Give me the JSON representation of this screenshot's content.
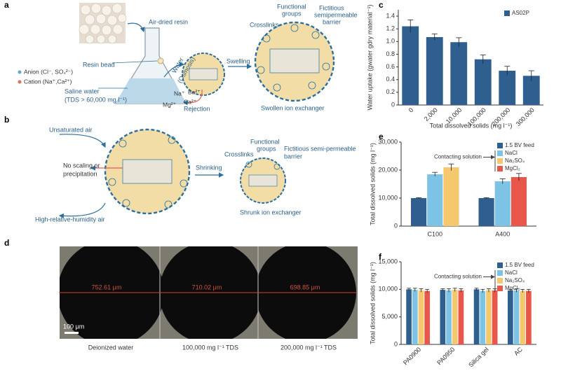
{
  "panel_labels": [
    "a",
    "b",
    "c",
    "d",
    "e",
    "f"
  ],
  "panel_a": {
    "air_dried_resin": "Air-dried resin",
    "resin_bead": "Resin bead",
    "anion": "Anion (Cl⁻, SO₄²⁻)",
    "cation": "Cation (Na⁺,Ca²⁺)",
    "saline_water": "Saline water",
    "tds": "(TDS > 60,000 mg l⁻¹)",
    "water": "Water",
    "osmosis": "(Osmosis)",
    "rejection": "Rejection",
    "ions": [
      "Na⁺",
      "Ba²⁺",
      "Mg²⁺",
      "Ca²⁺"
    ],
    "swelling": "Swelling",
    "crosslinks": "Crosslinks",
    "functional": "Functional",
    "groups": "groups",
    "fictitious": "Fictitious",
    "semipermeable": "semipermeable",
    "barrier": "barrier",
    "swollen": "Swollen ion exchanger"
  },
  "panel_b": {
    "unsaturated_air": "Unsaturated air",
    "no_scaling": "No scaling or",
    "precipitation": "precipitation",
    "humid_air": "High-relative-humidity air",
    "shrinking": "Shrinking",
    "crosslinks": "Crosslinks",
    "functional": "Functional",
    "groups": "groups",
    "fictitious": "Fictitious semi-permeable",
    "barrier": "barrier",
    "shrunk": "Shrunk ion exchanger"
  },
  "panel_d": {
    "diameters": [
      "752.61 μm",
      "710.02 μm",
      "698.85 μm"
    ],
    "scale_bar": "100 μm",
    "captions": [
      "Deionized water",
      "100,000 mg l⁻¹ TDS",
      "200,000 mg l⁻¹ TDS"
    ]
  },
  "chart_data": [
    {
      "type": "bar",
      "categories": [
        "0",
        "2,000",
        "10,000",
        "100,000",
        "200,000",
        "300,000"
      ],
      "series": [
        {
          "name": "AS02P",
          "color": "#2f5f8f",
          "values": [
            1.24,
            1.07,
            0.99,
            0.72,
            0.54,
            0.46
          ],
          "errors": [
            0.1,
            0.05,
            0.07,
            0.07,
            0.07,
            0.08
          ]
        }
      ],
      "ylim": [
        0,
        1.5
      ],
      "yticks": [
        0,
        0.2,
        0.4,
        0.6,
        0.8,
        {
          "value": 1,
          "label": "1.0"
        },
        1.2,
        1.4
      ],
      "y_label": "Water uptake (gwater gdry material⁻¹)",
      "x_label": "Total dissolved solids (mg l⁻¹)",
      "legend": "upper right"
    },
    {
      "type": "bar",
      "categories": [
        "C100",
        "A400"
      ],
      "series": [
        {
          "name": "1.5 BV feed",
          "color": "#2f5f8f",
          "values": [
            10000,
            10000
          ],
          "errors": [
            150,
            150
          ]
        },
        {
          "name": "NaCl",
          "color": "#7cc3e6",
          "values": [
            18500,
            16000
          ],
          "errors": [
            700,
            900
          ]
        },
        {
          "name": "Na₂SO₄",
          "color": "#f6c86e",
          "values": [
            21000,
            null
          ],
          "errors": [
            1200,
            null
          ]
        },
        {
          "name": "MgCl₂",
          "color": "#e8574a",
          "values": [
            null,
            17500
          ],
          "errors": [
            null,
            1300
          ]
        }
      ],
      "ylim": [
        0,
        30000
      ],
      "yticks": [
        0,
        {
          "value": 10000,
          "label": "10,000"
        },
        {
          "value": 20000,
          "label": "20,000"
        },
        {
          "value": 30000,
          "label": "30,000"
        }
      ],
      "y_label": "Total dissolved solids (mg l⁻¹)",
      "annotation": "Contacting solution",
      "legend": "upper right"
    },
    {
      "type": "bar",
      "categories": [
        "PA0900",
        "PA0950",
        "Silica gel",
        "AC"
      ],
      "series": [
        {
          "name": "1.5 BV feed",
          "color": "#2f5f8f",
          "values": [
            10000,
            9900,
            10000,
            9800
          ],
          "errors": [
            200,
            200,
            200,
            200
          ]
        },
        {
          "name": "NaCl",
          "color": "#7cc3e6",
          "values": [
            9900,
            9800,
            9700,
            9800
          ],
          "errors": [
            300,
            300,
            300,
            300
          ]
        },
        {
          "name": "Na₂SO₄",
          "color": "#f6c86e",
          "values": [
            9800,
            9900,
            9800,
            9700
          ],
          "errors": [
            300,
            300,
            300,
            300
          ]
        },
        {
          "name": "MgCl₂",
          "color": "#e8574a",
          "values": [
            9700,
            9800,
            9800,
            9700
          ],
          "errors": [
            300,
            300,
            300,
            300
          ]
        }
      ],
      "ylim": [
        0,
        15000
      ],
      "yticks": [
        0,
        {
          "value": 5000,
          "label": "5,000"
        },
        {
          "value": 10000,
          "label": "10,000"
        },
        {
          "value": 15000,
          "label": "15,000"
        }
      ],
      "y_label": "Total dissolved solids (mg l⁻¹)",
      "annotation": "Contacting solution",
      "legend": "upper right"
    }
  ]
}
